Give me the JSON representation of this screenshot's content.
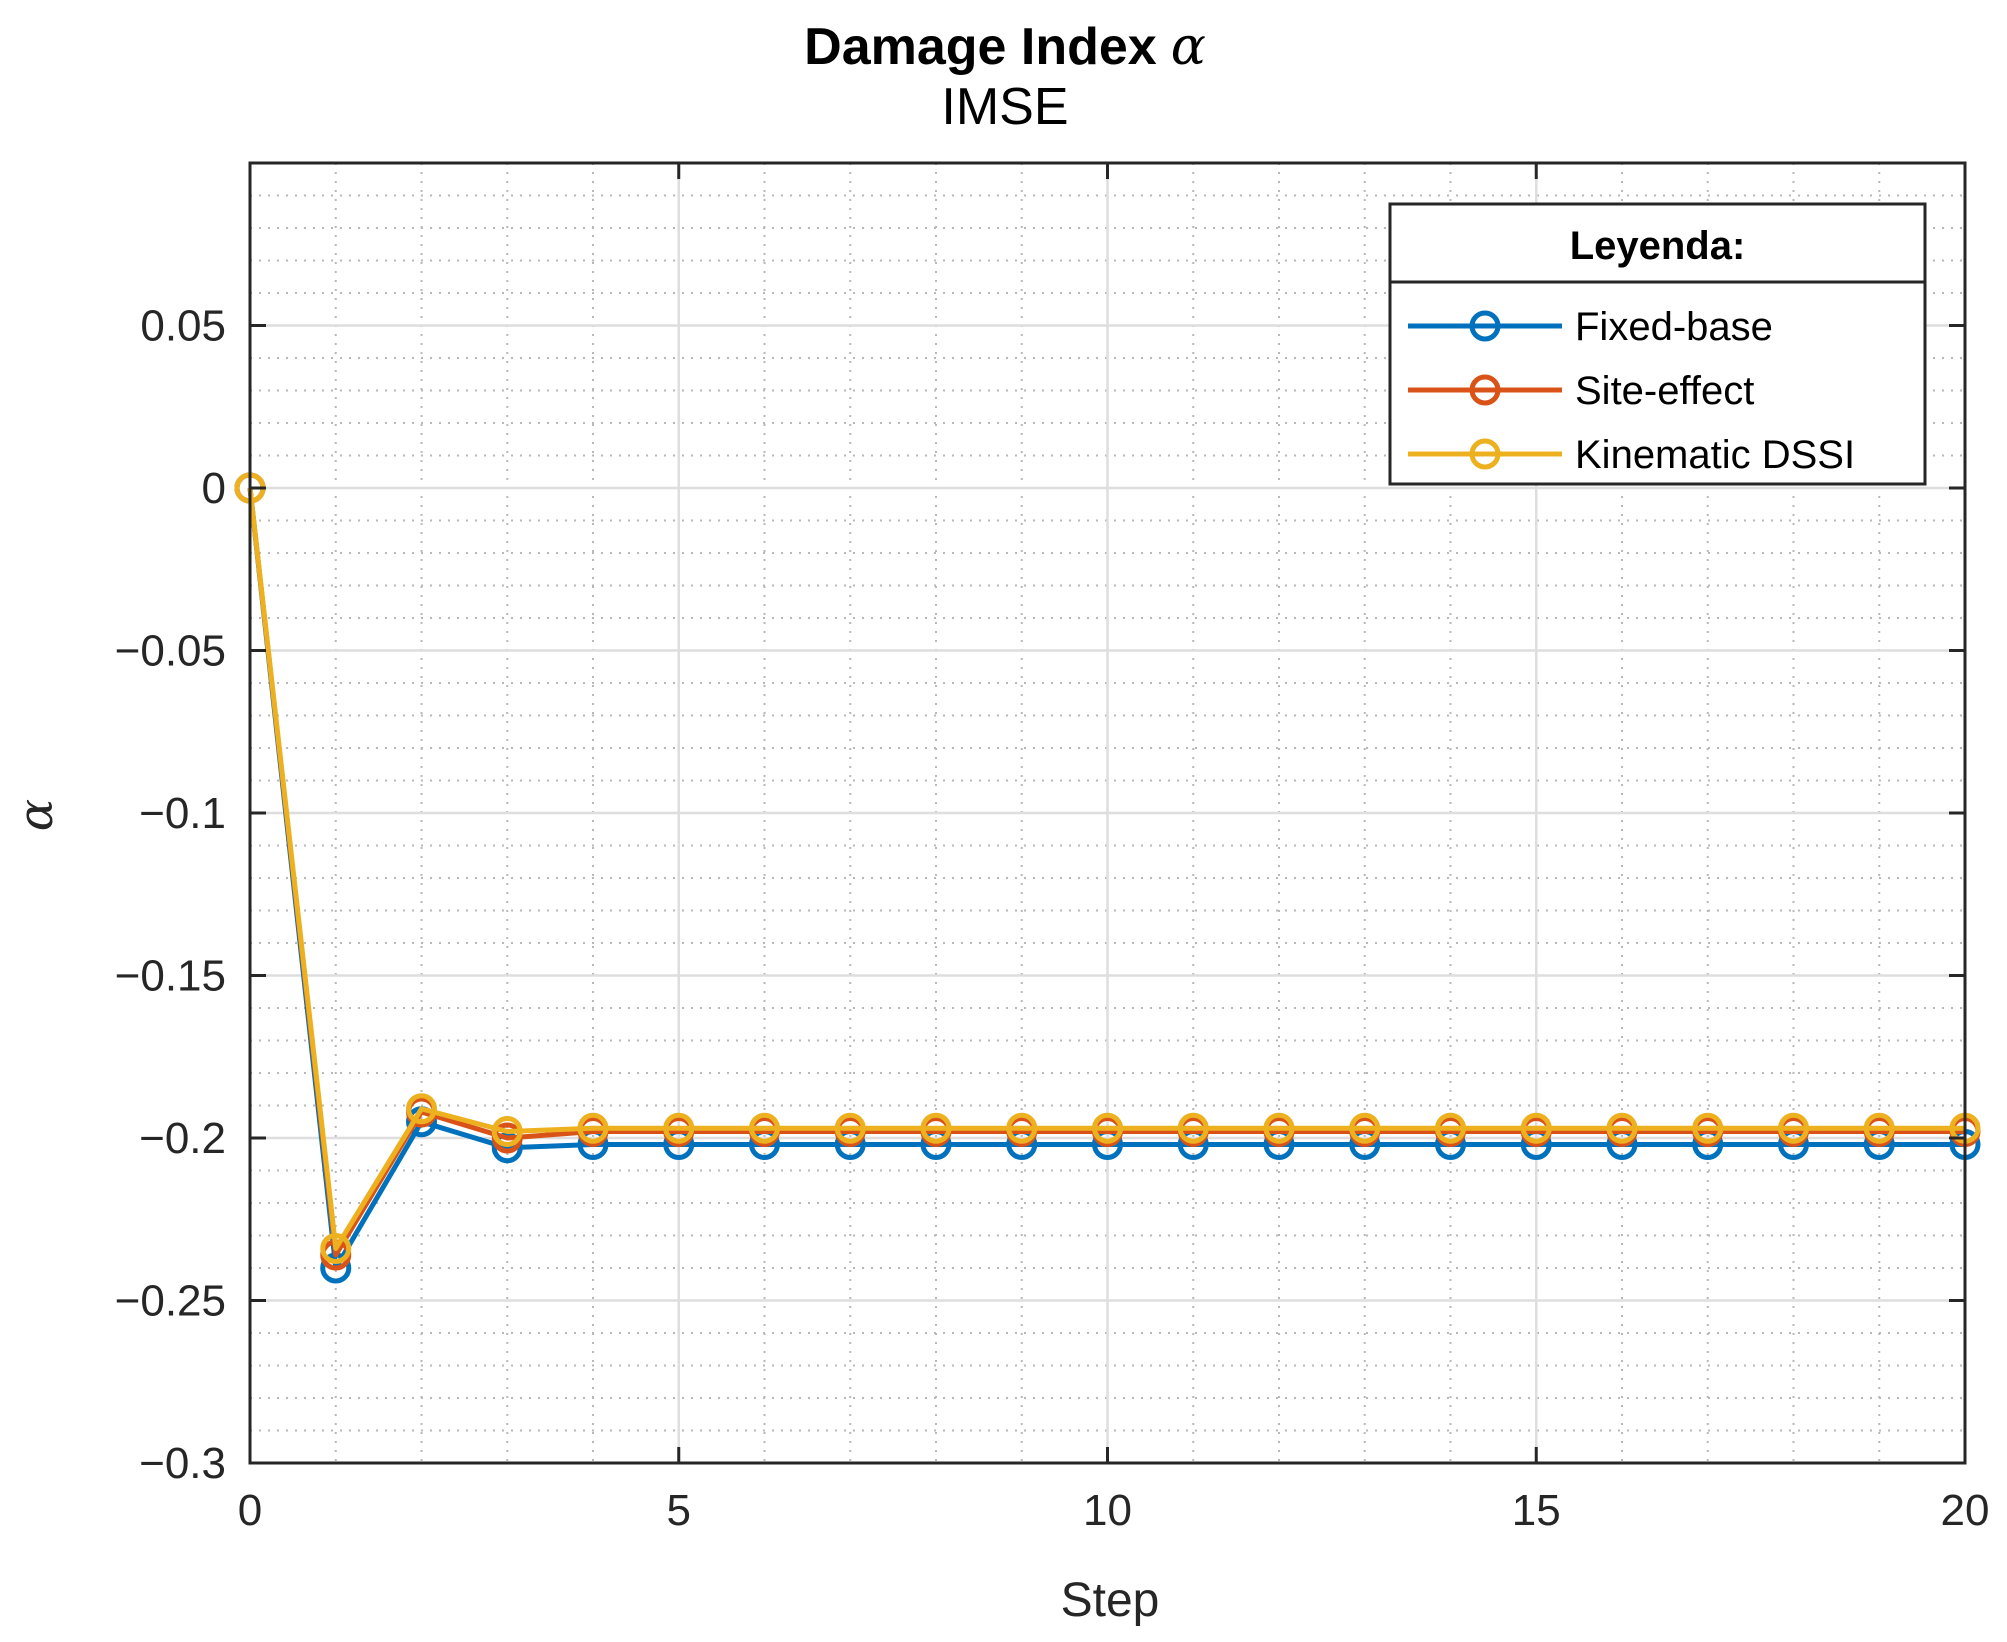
{
  "chart_data": {
    "type": "line",
    "title": "Damage Index",
    "title_symbol": "α",
    "subtitle": "IMSE",
    "xlabel": "Step",
    "ylabel": "α",
    "xlim": [
      0,
      20
    ],
    "ylim": [
      -0.3,
      0.1
    ],
    "xticks": [
      0,
      5,
      10,
      15,
      20
    ],
    "xtick_labels": [
      "0",
      "5",
      "10",
      "15",
      "20"
    ],
    "yticks": [
      0.05,
      0,
      -0.05,
      -0.1,
      -0.15,
      -0.2,
      -0.25,
      -0.3
    ],
    "ytick_labels": [
      "0.05",
      "0",
      "−0.05",
      "−0.1",
      "−0.15",
      "−0.2",
      "−0.25",
      "−0.3"
    ],
    "grid": true,
    "minor_grid": true,
    "legend_title": "Leyenda:",
    "legend_position": "top-right",
    "x": [
      0,
      1,
      2,
      3,
      4,
      5,
      6,
      7,
      8,
      9,
      10,
      11,
      12,
      13,
      14,
      15,
      16,
      17,
      18,
      19,
      20
    ],
    "series": [
      {
        "name": "Fixed-base",
        "color": "#0072BD",
        "marker": "circle",
        "values": [
          0,
          -0.24,
          -0.195,
          -0.203,
          -0.202,
          -0.202,
          -0.202,
          -0.202,
          -0.202,
          -0.202,
          -0.202,
          -0.202,
          -0.202,
          -0.202,
          -0.202,
          -0.202,
          -0.202,
          -0.202,
          -0.202,
          -0.202,
          -0.202
        ]
      },
      {
        "name": "Site-effect",
        "color": "#D95319",
        "marker": "circle",
        "values": [
          0,
          -0.236,
          -0.192,
          -0.2,
          -0.198,
          -0.198,
          -0.198,
          -0.198,
          -0.198,
          -0.198,
          -0.198,
          -0.198,
          -0.198,
          -0.198,
          -0.198,
          -0.198,
          -0.198,
          -0.198,
          -0.198,
          -0.198,
          -0.198
        ]
      },
      {
        "name": "Kinematic DSSI",
        "color": "#EDB120",
        "marker": "circle",
        "values": [
          0,
          -0.234,
          -0.191,
          -0.198,
          -0.197,
          -0.197,
          -0.197,
          -0.197,
          -0.197,
          -0.197,
          -0.197,
          -0.197,
          -0.197,
          -0.197,
          -0.197,
          -0.197,
          -0.197,
          -0.197,
          -0.197,
          -0.197,
          -0.197
        ]
      }
    ]
  }
}
